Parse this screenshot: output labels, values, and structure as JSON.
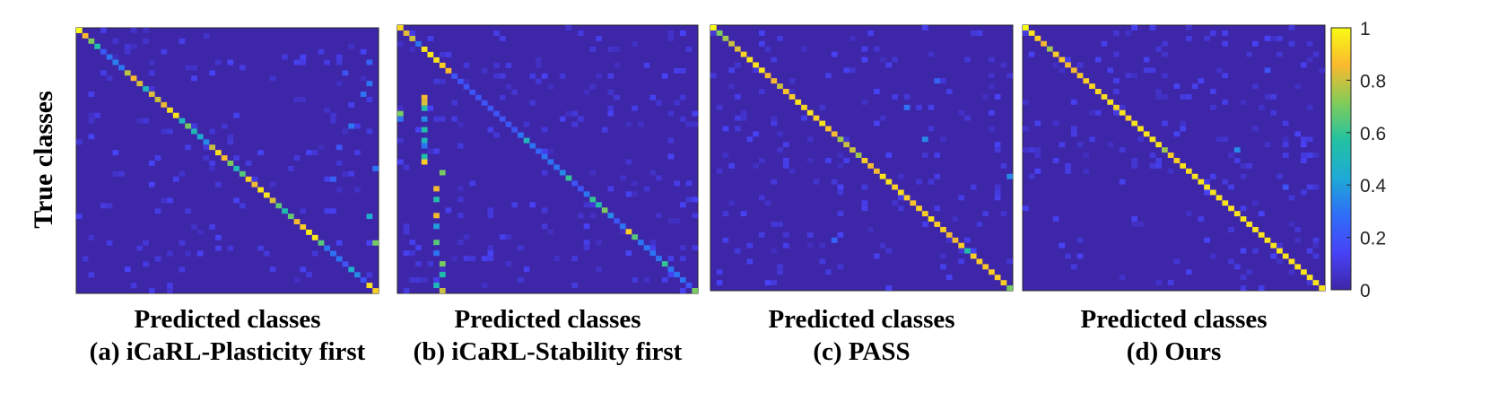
{
  "figure": {
    "ylabel": "True classes"
  },
  "colorbar": {
    "min": 0,
    "max": 1,
    "ticks": [
      "0",
      "0.2",
      "0.4",
      "0.6",
      "0.8",
      "1"
    ],
    "colormap": [
      "#3e26a8",
      "#4743f7",
      "#2f6ef8",
      "#1eaad5",
      "#22c2a2",
      "#81cc59",
      "#fab92f",
      "#f9fb14"
    ]
  },
  "chart_data": [
    {
      "type": "heatmap",
      "title": "(a) iCaRL-Plasticity first",
      "xlabel": "Predicted classes",
      "ylabel": "True classes",
      "n_classes": 50,
      "diagonal": [
        1.0,
        0.86,
        0.71,
        0.55,
        0.22,
        0.3,
        0.33,
        0.3,
        0.78,
        0.86,
        0.82,
        0.5,
        0.82,
        0.8,
        0.84,
        0.94,
        0.95,
        0.49,
        0.7,
        0.52,
        0.44,
        0.35,
        0.8,
        0.94,
        0.86,
        0.7,
        0.52,
        0.65,
        0.9,
        0.85,
        0.95,
        0.95,
        0.82,
        0.66,
        0.54,
        0.67,
        0.85,
        0.9,
        0.97,
        0.96,
        0.65,
        0.3,
        0.3,
        0.3,
        0.2,
        0.45,
        0.35,
        0.2,
        0.95,
        0.9
      ],
      "off_diagonal_cells": [
        [
          10,
          48,
          0.3
        ],
        [
          12,
          47,
          0.3
        ],
        [
          18,
          45,
          0.3
        ],
        [
          30,
          50,
          0.4
        ],
        [
          35,
          48,
          0.45
        ],
        [
          40,
          49,
          0.7
        ],
        [
          8,
          44,
          0.2
        ],
        [
          22,
          43,
          0.2
        ],
        [
          28,
          42,
          0.25
        ],
        [
          26,
          49,
          0.3
        ],
        [
          6,
          48,
          0.25
        ]
      ]
    },
    {
      "type": "heatmap",
      "title": "(b) iCaRL-Stability first",
      "xlabel": "Predicted classes",
      "ylabel": "True classes",
      "n_classes": 50,
      "diagonal": [
        0.92,
        0.83,
        0.8,
        0.3,
        0.95,
        0.96,
        0.95,
        0.9,
        0.86,
        0.2,
        0.2,
        0.2,
        0.2,
        0.2,
        0.2,
        0.2,
        0.2,
        0.2,
        0.2,
        0.2,
        0.3,
        0.5,
        0.3,
        0.25,
        0.3,
        0.3,
        0.3,
        0.35,
        0.6,
        0.2,
        0.2,
        0.3,
        0.6,
        0.55,
        0.7,
        0.35,
        0.2,
        0.3,
        0.9,
        0.65,
        0.3,
        0.3,
        0.3,
        0.3,
        0.6,
        0.3,
        0.3,
        0.3,
        0.2,
        0.7
      ],
      "off_diagonal_cells": [
        [
          13,
          4,
          0.85
        ],
        [
          14,
          4,
          0.82
        ],
        [
          15,
          4,
          0.55
        ],
        [
          17,
          4,
          0.35
        ],
        [
          19,
          4,
          0.55
        ],
        [
          21,
          4,
          0.5
        ],
        [
          22,
          4,
          0.3
        ],
        [
          24,
          4,
          0.55
        ],
        [
          25,
          4,
          0.9
        ],
        [
          27,
          7,
          0.7
        ],
        [
          30,
          6,
          0.85
        ],
        [
          32,
          6,
          0.55
        ],
        [
          35,
          6,
          0.85
        ],
        [
          37,
          6,
          0.4
        ],
        [
          40,
          6,
          0.65
        ],
        [
          42,
          6,
          0.3
        ],
        [
          44,
          7,
          0.7
        ],
        [
          46,
          7,
          0.55
        ],
        [
          48,
          6,
          0.5
        ],
        [
          49,
          7,
          0.8
        ],
        [
          16,
          0,
          0.7
        ],
        [
          17,
          0,
          0.3
        ]
      ]
    },
    {
      "type": "heatmap",
      "title": "(c) PASS",
      "xlabel": "Predicted classes",
      "ylabel": "True classes",
      "n_classes": 50,
      "diagonal": [
        1.0,
        0.71,
        0.75,
        0.8,
        0.82,
        0.92,
        0.95,
        0.95,
        0.95,
        0.85,
        0.85,
        0.8,
        0.88,
        0.9,
        0.95,
        0.92,
        0.95,
        0.9,
        0.95,
        0.88,
        0.85,
        0.75,
        0.8,
        0.8,
        0.75,
        0.9,
        0.85,
        0.85,
        0.95,
        0.95,
        0.9,
        0.93,
        0.9,
        0.88,
        0.9,
        0.9,
        0.95,
        0.9,
        0.9,
        0.85,
        0.85,
        0.9,
        0.55,
        0.9,
        0.9,
        0.88,
        0.9,
        0.9,
        0.9,
        0.7
      ],
      "off_diagonal_cells": [
        [
          28,
          49,
          0.35
        ],
        [
          15,
          32,
          0.3
        ],
        [
          21,
          35,
          0.35
        ],
        [
          10,
          37,
          0.25
        ],
        [
          40,
          20,
          0.25
        ]
      ]
    },
    {
      "type": "heatmap",
      "title": "(d) Ours",
      "xlabel": "Predicted classes",
      "ylabel": "True classes",
      "n_classes": 50,
      "diagonal": [
        1.0,
        0.95,
        0.9,
        0.85,
        0.75,
        0.9,
        0.88,
        0.85,
        0.85,
        0.88,
        0.9,
        0.92,
        0.93,
        0.93,
        0.95,
        0.93,
        0.95,
        0.9,
        0.95,
        0.95,
        0.95,
        0.95,
        0.95,
        0.75,
        0.9,
        0.9,
        0.95,
        0.93,
        0.95,
        0.95,
        0.95,
        0.95,
        0.95,
        0.95,
        0.95,
        0.95,
        0.95,
        0.95,
        0.95,
        0.95,
        0.95,
        0.95,
        0.95,
        0.95,
        0.95,
        0.95,
        0.95,
        0.95,
        0.95,
        0.95
      ],
      "off_diagonal_cells": [
        [
          23,
          35,
          0.35
        ],
        [
          8,
          40,
          0.2
        ],
        [
          30,
          43,
          0.2
        ]
      ]
    }
  ]
}
